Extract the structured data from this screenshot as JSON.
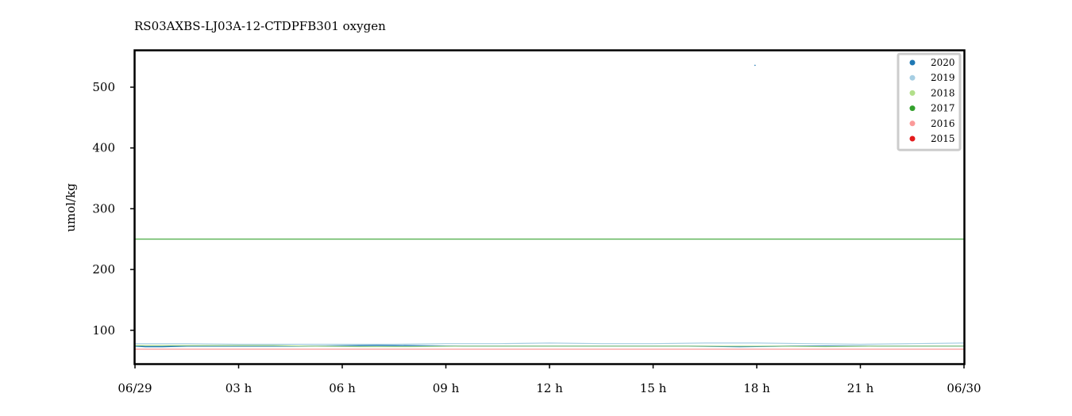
{
  "chart_data": {
    "type": "line",
    "title": "RS03AXBS-LJ03A-12-CTDPFB301 oxygen",
    "xlabel": "",
    "ylabel": "umol/kg",
    "x_range_hours": [
      0,
      24
    ],
    "ylim": [
      45,
      560
    ],
    "x_ticks": [
      {
        "hour": 0,
        "label": "06/29"
      },
      {
        "hour": 3,
        "label": "03 h"
      },
      {
        "hour": 6,
        "label": "06 h"
      },
      {
        "hour": 9,
        "label": "09 h"
      },
      {
        "hour": 12,
        "label": "12 h"
      },
      {
        "hour": 15,
        "label": "15 h"
      },
      {
        "hour": 18,
        "label": "18 h"
      },
      {
        "hour": 21,
        "label": "21 h"
      },
      {
        "hour": 24,
        "label": "06/30"
      }
    ],
    "y_ticks": [
      100,
      200,
      300,
      400,
      500
    ],
    "grid": false,
    "legend_position": "top-right",
    "series": [
      {
        "name": "2020",
        "color": "#1f78b4",
        "x": [
          0,
          0.3,
          0.8,
          1.5,
          3.5,
          5.5,
          7.0,
          9.0,
          11.0,
          12.5,
          14.0,
          16.0,
          17.5,
          19.0,
          21.0,
          22.5,
          24.0
        ],
        "y": [
          74,
          73,
          73,
          74,
          74,
          74,
          75,
          74,
          74,
          74,
          74,
          74,
          73,
          74,
          74,
          74,
          74
        ]
      },
      {
        "name": "2019",
        "color": "#a6cee3",
        "x": [
          0,
          1.5,
          3.0,
          4.5,
          6.0,
          7.5,
          9.0,
          10.5,
          12.0,
          13.5,
          15.0,
          16.5,
          18.0,
          19.5,
          21.0,
          22.5,
          24.0
        ],
        "y": [
          78,
          78,
          77,
          77,
          77,
          77,
          78,
          78,
          79,
          78,
          78,
          79,
          79,
          78,
          77,
          78,
          79
        ]
      },
      {
        "name": "2018",
        "color": "#b2df8a",
        "x": [
          0,
          2.0,
          4.0,
          5.0,
          6.5,
          8.0,
          9.5,
          11.0,
          12.5,
          14.0,
          15.5,
          17.0,
          18.5,
          20.0,
          21.5,
          23.0,
          24.0
        ],
        "y": [
          75,
          75,
          75,
          74,
          73,
          73,
          74,
          74,
          74,
          74,
          74,
          74,
          74,
          73,
          74,
          74,
          74
        ]
      },
      {
        "name": "2017",
        "color": "#33a02c",
        "x": [
          0,
          24
        ],
        "y": [
          250,
          250
        ]
      },
      {
        "name": "2016",
        "color": "#fb9a99",
        "x": [
          0,
          24
        ],
        "y": [
          69,
          69
        ]
      },
      {
        "name": "2015",
        "color": "#e31a1c",
        "x": [],
        "y": []
      }
    ],
    "outliers": [
      {
        "series": "2020",
        "x": 17.95,
        "y": 536
      }
    ]
  }
}
